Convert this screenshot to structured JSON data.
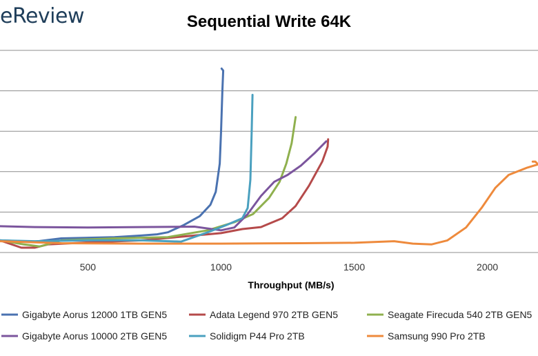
{
  "brand": {
    "text": "eReview"
  },
  "chart_data": {
    "type": "line",
    "title": "Sequential Write 64K",
    "xlabel": "Throughput (MB/s)",
    "ylabel": "",
    "xlim": [
      170,
      2190
    ],
    "ylim": [
      0,
      5
    ],
    "x_ticks": [
      500,
      1000,
      1500,
      2000
    ],
    "grid": "horizontal",
    "legend_position": "bottom",
    "series": [
      {
        "name": "Gigabyte Aorus 12000 1TB GEN5",
        "color": "#4a72b0",
        "points": [
          [
            170,
            0.3
          ],
          [
            300,
            0.27
          ],
          [
            400,
            0.35
          ],
          [
            600,
            0.38
          ],
          [
            700,
            0.42
          ],
          [
            760,
            0.45
          ],
          [
            800,
            0.5
          ],
          [
            860,
            0.68
          ],
          [
            920,
            0.9
          ],
          [
            960,
            1.18
          ],
          [
            980,
            1.5
          ],
          [
            995,
            2.2
          ],
          [
            1000,
            3.0
          ],
          [
            1005,
            4.0
          ],
          [
            1008,
            4.5
          ],
          [
            1002,
            4.55
          ]
        ]
      },
      {
        "name": "Adata Legend 970 2TB GEN5",
        "color": "#b54a4a",
        "points": [
          [
            170,
            0.3
          ],
          [
            250,
            0.12
          ],
          [
            300,
            0.12
          ],
          [
            350,
            0.2
          ],
          [
            500,
            0.25
          ],
          [
            700,
            0.3
          ],
          [
            900,
            0.42
          ],
          [
            1000,
            0.48
          ],
          [
            1080,
            0.58
          ],
          [
            1150,
            0.63
          ],
          [
            1230,
            0.85
          ],
          [
            1280,
            1.15
          ],
          [
            1330,
            1.65
          ],
          [
            1380,
            2.25
          ],
          [
            1400,
            2.62
          ],
          [
            1402,
            2.8
          ]
        ]
      },
      {
        "name": "Seagate Firecuda 540 2TB GEN5",
        "color": "#8fb04e",
        "points": [
          [
            170,
            0.3
          ],
          [
            260,
            0.2
          ],
          [
            320,
            0.15
          ],
          [
            400,
            0.3
          ],
          [
            600,
            0.35
          ],
          [
            800,
            0.38
          ],
          [
            950,
            0.55
          ],
          [
            1050,
            0.75
          ],
          [
            1120,
            0.95
          ],
          [
            1180,
            1.35
          ],
          [
            1220,
            1.75
          ],
          [
            1245,
            2.2
          ],
          [
            1265,
            2.7
          ],
          [
            1280,
            3.35
          ]
        ]
      },
      {
        "name": "Gigabyte Aorus 10000 2TB GEN5",
        "color": "#7b559d",
        "points": [
          [
            170,
            0.65
          ],
          [
            300,
            0.63
          ],
          [
            500,
            0.62
          ],
          [
            700,
            0.63
          ],
          [
            900,
            0.64
          ],
          [
            1000,
            0.55
          ],
          [
            1050,
            0.62
          ],
          [
            1100,
            0.95
          ],
          [
            1150,
            1.4
          ],
          [
            1200,
            1.75
          ],
          [
            1250,
            1.92
          ],
          [
            1300,
            2.15
          ],
          [
            1350,
            2.45
          ],
          [
            1395,
            2.75
          ]
        ]
      },
      {
        "name": "Solidigm P44 Pro 2TB",
        "color": "#4aa0bf",
        "points": [
          [
            170,
            0.3
          ],
          [
            300,
            0.28
          ],
          [
            500,
            0.3
          ],
          [
            700,
            0.3
          ],
          [
            850,
            0.27
          ],
          [
            950,
            0.5
          ],
          [
            1020,
            0.68
          ],
          [
            1080,
            0.85
          ],
          [
            1100,
            1.1
          ],
          [
            1110,
            1.8
          ],
          [
            1115,
            3.0
          ],
          [
            1118,
            3.9
          ]
        ]
      },
      {
        "name": "Samsung 990 Pro 2TB",
        "color": "#ee8a3c",
        "points": [
          [
            170,
            0.28
          ],
          [
            400,
            0.23
          ],
          [
            700,
            0.22
          ],
          [
            1000,
            0.22
          ],
          [
            1300,
            0.23
          ],
          [
            1500,
            0.24
          ],
          [
            1650,
            0.28
          ],
          [
            1720,
            0.22
          ],
          [
            1790,
            0.2
          ],
          [
            1850,
            0.3
          ],
          [
            1920,
            0.62
          ],
          [
            1980,
            1.12
          ],
          [
            2030,
            1.6
          ],
          [
            2080,
            1.92
          ],
          [
            2150,
            2.1
          ],
          [
            2190,
            2.18
          ],
          [
            2180,
            2.25
          ],
          [
            2170,
            2.25
          ]
        ]
      }
    ]
  }
}
